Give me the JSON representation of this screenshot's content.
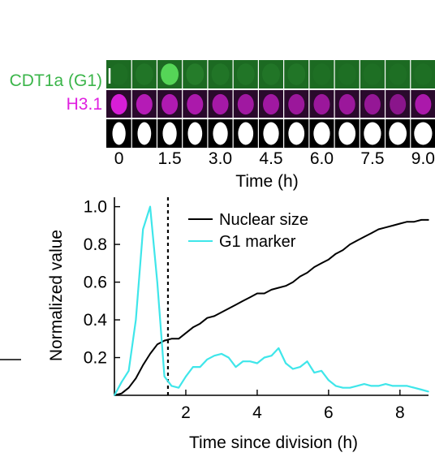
{
  "montage": {
    "rows": [
      {
        "label": "CDT1a (G1)",
        "color": "#3bb54a"
      },
      {
        "label": "H3.1",
        "color": "#e020e0"
      },
      {
        "label": "",
        "color": "#ffffff"
      }
    ],
    "frames": 13,
    "time_ticks": [
      "0",
      "1.5",
      "3.0",
      "4.5",
      "6.0",
      "7.5",
      "9.0"
    ],
    "xlabel": "Time (h)",
    "g1_frame_intensity": [
      0.05,
      0.1,
      0.9,
      0.15,
      0.1,
      0.1,
      0.1,
      0.1,
      0.05,
      0.05,
      0.05,
      0.05,
      0.05
    ],
    "h31_frame_intensity": [
      1.0,
      0.7,
      0.65,
      0.6,
      0.55,
      0.5,
      0.5,
      0.45,
      0.45,
      0.45,
      0.4,
      0.3,
      0.6
    ]
  },
  "chart_data": {
    "type": "line",
    "title": "",
    "xlabel": "Time since division (h)",
    "ylabel": "Normalized value",
    "xlim": [
      0,
      8.8
    ],
    "ylim": [
      0,
      1.05
    ],
    "xticks": [
      2,
      4,
      6,
      8
    ],
    "yticks": [
      0.2,
      0.4,
      0.6,
      0.8,
      1.0
    ],
    "ytick_labels": [
      "0.2",
      "0.4",
      "0.6",
      "0.8",
      "1.0"
    ],
    "division_marker_x": 1.5,
    "legend_position": "top-right",
    "grid": false,
    "series": [
      {
        "name": "Nuclear size",
        "color": "#000000",
        "x": [
          0,
          0.2,
          0.4,
          0.6,
          0.8,
          1.0,
          1.2,
          1.4,
          1.6,
          1.8,
          2.0,
          2.2,
          2.4,
          2.6,
          2.8,
          3.0,
          3.2,
          3.4,
          3.6,
          3.8,
          4.0,
          4.2,
          4.4,
          4.6,
          4.8,
          5.0,
          5.2,
          5.4,
          5.6,
          5.8,
          6.0,
          6.2,
          6.4,
          6.6,
          6.8,
          7.0,
          7.2,
          7.4,
          7.6,
          7.8,
          8.0,
          8.2,
          8.4,
          8.6,
          8.8
        ],
        "y": [
          0.0,
          0.01,
          0.04,
          0.09,
          0.16,
          0.22,
          0.27,
          0.29,
          0.3,
          0.3,
          0.33,
          0.36,
          0.38,
          0.41,
          0.42,
          0.44,
          0.46,
          0.48,
          0.5,
          0.52,
          0.54,
          0.54,
          0.56,
          0.57,
          0.58,
          0.6,
          0.63,
          0.65,
          0.68,
          0.7,
          0.72,
          0.75,
          0.77,
          0.8,
          0.82,
          0.84,
          0.86,
          0.88,
          0.89,
          0.9,
          0.91,
          0.92,
          0.92,
          0.93,
          0.93
        ]
      },
      {
        "name": "G1 marker",
        "color": "#3fe6ea",
        "x": [
          0,
          0.2,
          0.4,
          0.6,
          0.8,
          1.0,
          1.2,
          1.4,
          1.6,
          1.8,
          2.0,
          2.2,
          2.4,
          2.6,
          2.8,
          3.0,
          3.2,
          3.4,
          3.6,
          3.8,
          4.0,
          4.2,
          4.4,
          4.6,
          4.8,
          5.0,
          5.2,
          5.4,
          5.6,
          5.8,
          6.0,
          6.2,
          6.4,
          6.6,
          6.8,
          7.0,
          7.2,
          7.4,
          7.6,
          7.8,
          8.0,
          8.2,
          8.4,
          8.6,
          8.8
        ],
        "y": [
          0.0,
          0.07,
          0.13,
          0.4,
          0.88,
          1.0,
          0.6,
          0.1,
          0.05,
          0.04,
          0.1,
          0.15,
          0.15,
          0.19,
          0.21,
          0.22,
          0.2,
          0.15,
          0.18,
          0.18,
          0.17,
          0.2,
          0.21,
          0.25,
          0.17,
          0.14,
          0.15,
          0.18,
          0.12,
          0.13,
          0.08,
          0.05,
          0.04,
          0.04,
          0.05,
          0.06,
          0.05,
          0.05,
          0.06,
          0.05,
          0.05,
          0.05,
          0.04,
          0.03,
          0.02
        ]
      }
    ]
  }
}
